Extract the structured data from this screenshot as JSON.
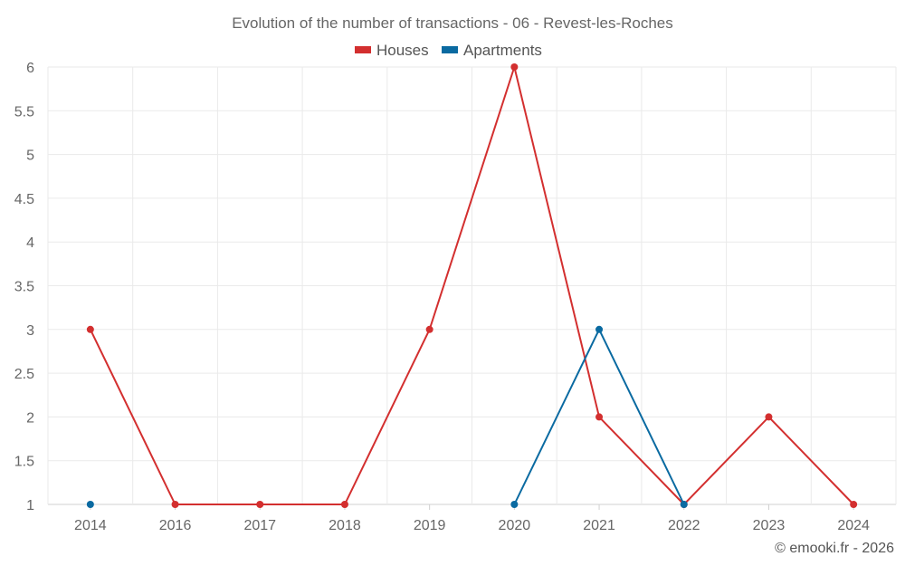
{
  "chart_data": {
    "type": "line",
    "title": "Evolution of the number of transactions - 06 - Revest-les-Roches",
    "categories": [
      "2014",
      "2016",
      "2017",
      "2018",
      "2019",
      "2020",
      "2021",
      "2022",
      "2023",
      "2024"
    ],
    "series": [
      {
        "name": "Houses",
        "color": "#d32f2f",
        "values": [
          3,
          1,
          1,
          1,
          3,
          6,
          2,
          1,
          2,
          1
        ]
      },
      {
        "name": "Apartments",
        "color": "#0a6aa1",
        "values": [
          1,
          null,
          null,
          null,
          null,
          1,
          3,
          1,
          null,
          null
        ]
      }
    ],
    "ylim": [
      1,
      6
    ],
    "yticks": [
      1,
      1.5,
      2,
      2.5,
      3,
      3.5,
      4,
      4.5,
      5,
      5.5,
      6
    ],
    "grid": true,
    "legend": "top-center"
  },
  "credit": "© emooki.fr - 2026"
}
